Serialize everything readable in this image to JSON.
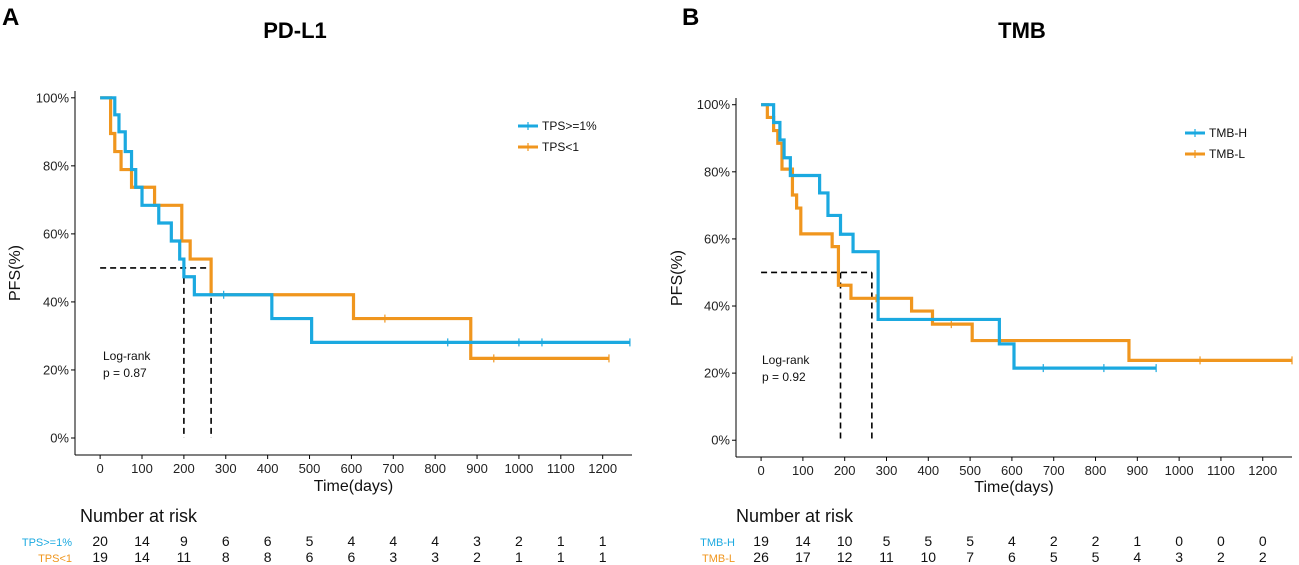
{
  "chart_data": [
    {
      "panel_letter": "A",
      "title": "PD-L1",
      "type": "line",
      "subtype": "kaplan-meier",
      "xlabel": "Time(days)",
      "ylabel": "PFS(%)",
      "xlim": [
        -60,
        1270
      ],
      "ylim": [
        -5,
        102
      ],
      "xticks": [
        0,
        100,
        200,
        300,
        400,
        500,
        600,
        700,
        800,
        900,
        1000,
        1100,
        1200
      ],
      "yticks": [
        0,
        20,
        40,
        60,
        80,
        100
      ],
      "ytick_labels": [
        "0%",
        "20%",
        "40%",
        "60%",
        "80%",
        "100%"
      ],
      "annotation": [
        "Log-rank",
        "p = 0.87"
      ],
      "median_line_y": 50,
      "median_x": [
        200,
        265
      ],
      "series": [
        {
          "name": "TPS>=1%",
          "color": "#1BA9E0",
          "x": [
            0,
            35,
            45,
            60,
            75,
            85,
            100,
            140,
            170,
            190,
            200,
            225,
            265,
            410,
            505,
            1265
          ],
          "y": [
            100,
            95,
            90,
            84.2,
            78.9,
            73.7,
            68.4,
            63.2,
            57.9,
            52.6,
            47.4,
            42.1,
            42.1,
            35.1,
            28.1,
            28.1
          ],
          "censor": [
            [
              295,
              42.1
            ],
            [
              830,
              28.1
            ],
            [
              1000,
              28.1
            ],
            [
              1055,
              28.1
            ],
            [
              1265,
              28.1
            ]
          ]
        },
        {
          "name": "TPS<1",
          "color": "#F0961E",
          "x": [
            0,
            25,
            35,
            50,
            75,
            130,
            195,
            215,
            265,
            605,
            885,
            1215
          ],
          "y": [
            100,
            89.5,
            84.2,
            78.9,
            73.7,
            68.4,
            57.9,
            52.6,
            42.1,
            35.1,
            23.4,
            23.4
          ],
          "censor": [
            [
              680,
              35.1
            ],
            [
              940,
              23.4
            ],
            [
              1215,
              23.4
            ]
          ]
        }
      ],
      "risk_table": {
        "heading": "Number at risk",
        "times": [
          0,
          100,
          200,
          300,
          400,
          500,
          600,
          700,
          800,
          900,
          1000,
          1100,
          1200
        ],
        "rows": [
          {
            "label": "TPS>=1%",
            "color": "#1BA9E0",
            "values": [
              20,
              14,
              9,
              6,
              6,
              5,
              4,
              4,
              4,
              3,
              2,
              1,
              1
            ]
          },
          {
            "label": "TPS<1",
            "color": "#F0961E",
            "values": [
              19,
              14,
              11,
              8,
              8,
              6,
              6,
              3,
              3,
              2,
              1,
              1,
              1
            ]
          }
        ]
      }
    },
    {
      "panel_letter": "B",
      "title": "TMB",
      "type": "line",
      "subtype": "kaplan-meier",
      "xlabel": "Time(days)",
      "ylabel": "PFS(%)",
      "xlim": [
        -60,
        1270
      ],
      "ylim": [
        -5,
        102
      ],
      "xticks": [
        0,
        100,
        200,
        300,
        400,
        500,
        600,
        700,
        800,
        900,
        1000,
        1100,
        1200
      ],
      "yticks": [
        0,
        20,
        40,
        60,
        80,
        100
      ],
      "ytick_labels": [
        "0%",
        "20%",
        "40%",
        "60%",
        "80%",
        "100%"
      ],
      "annotation": [
        "Log-rank",
        "p = 0.92"
      ],
      "median_line_y": 50,
      "median_x": [
        190,
        265
      ],
      "series": [
        {
          "name": "TMB-H",
          "color": "#1BA9E0",
          "x": [
            0,
            30,
            45,
            55,
            70,
            140,
            160,
            190,
            220,
            280,
            570,
            605,
            945
          ],
          "y": [
            100,
            94.7,
            89.5,
            84.2,
            78.9,
            73.7,
            67,
            61.4,
            56.2,
            36,
            28.7,
            21.5,
            21.5
          ],
          "censor": [
            [
              675,
              21.5
            ],
            [
              820,
              21.5
            ],
            [
              945,
              21.5
            ]
          ]
        },
        {
          "name": "TMB-L",
          "color": "#F0961E",
          "x": [
            0,
            15,
            30,
            40,
            50,
            75,
            85,
            95,
            170,
            185,
            215,
            360,
            410,
            505,
            880,
            1270
          ],
          "y": [
            100,
            96.2,
            92.3,
            88.5,
            80.8,
            73.1,
            69.2,
            61.5,
            57.7,
            46.2,
            42.3,
            38.5,
            34.6,
            29.7,
            23.8,
            23.8
          ],
          "censor": [
            [
              275,
              42.3
            ],
            [
              455,
              34.6
            ],
            [
              1050,
              23.8
            ],
            [
              1270,
              23.8
            ]
          ]
        }
      ],
      "risk_table": {
        "heading": "Number at risk",
        "times": [
          0,
          100,
          200,
          300,
          400,
          500,
          600,
          700,
          800,
          900,
          1000,
          1100,
          1200
        ],
        "rows": [
          {
            "label": "TMB-H",
            "color": "#1BA9E0",
            "values": [
              19,
              14,
              10,
              5,
              5,
              5,
              4,
              2,
              2,
              1,
              0,
              0,
              0
            ]
          },
          {
            "label": "TMB-L",
            "color": "#F0961E",
            "values": [
              26,
              17,
              12,
              11,
              10,
              7,
              6,
              5,
              5,
              4,
              3,
              2,
              2
            ]
          }
        ]
      }
    }
  ]
}
